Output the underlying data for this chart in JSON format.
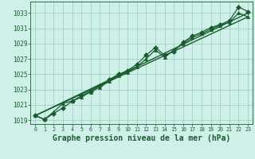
{
  "title": "",
  "xlabel": "Graphe pression niveau de la mer (hPa)",
  "xlabel_fontsize": 7,
  "ylabel": "",
  "background_color": "#cff0e8",
  "plot_bg_color": "#cff0e8",
  "grid_color": "#99ccbb",
  "line_color": "#1a5c30",
  "marker_color": "#1a5c30",
  "ylim": [
    1018.5,
    1034.5
  ],
  "xlim": [
    -0.5,
    23.5
  ],
  "yticks": [
    1019,
    1021,
    1023,
    1025,
    1027,
    1029,
    1031,
    1033
  ],
  "xticks": [
    0,
    1,
    2,
    3,
    4,
    5,
    6,
    7,
    8,
    9,
    10,
    11,
    12,
    13,
    14,
    15,
    16,
    17,
    18,
    19,
    20,
    21,
    22,
    23
  ],
  "xtick_labels": [
    "0",
    "1",
    "2",
    "3",
    "4",
    "5",
    "6",
    "7",
    "8",
    "9",
    "10",
    "11",
    "12",
    "13",
    "14",
    "15",
    "16",
    "17",
    "18",
    "19",
    "20",
    "21",
    "22",
    "23"
  ],
  "series_main": {
    "x": [
      0,
      1,
      2,
      3,
      4,
      5,
      6,
      7,
      8,
      9,
      10,
      11,
      12,
      13,
      14,
      15,
      16,
      17,
      18,
      19,
      20,
      21,
      22,
      23
    ],
    "y": [
      1019.6,
      1019.1,
      1019.9,
      1020.6,
      1021.5,
      1022.2,
      1022.8,
      1023.5,
      1024.3,
      1025.0,
      1025.5,
      1026.3,
      1027.5,
      1028.5,
      1027.5,
      1028.0,
      1029.2,
      1030.0,
      1030.5,
      1031.1,
      1031.5,
      1032.0,
      1033.8,
      1033.2
    ],
    "marker": "D",
    "marker_size": 3,
    "linewidth": 0.9
  },
  "series_alt": {
    "x": [
      0,
      1,
      2,
      3,
      4,
      5,
      6,
      7,
      8,
      9,
      10,
      11,
      12,
      13,
      14,
      15,
      16,
      17,
      18,
      19,
      20,
      21,
      22,
      23
    ],
    "y": [
      1019.6,
      1019.1,
      1020.1,
      1021.2,
      1021.5,
      1022.0,
      1022.7,
      1023.3,
      1024.1,
      1024.8,
      1025.3,
      1026.0,
      1027.0,
      1028.2,
      1027.2,
      1028.2,
      1029.0,
      1029.8,
      1030.3,
      1030.9,
      1031.4,
      1031.8,
      1033.0,
      1032.5
    ],
    "marker": "^",
    "marker_size": 3,
    "linewidth": 0.9
  },
  "trend1": {
    "x": [
      0,
      23
    ],
    "y": [
      1019.6,
      1033.0
    ]
  },
  "trend2": {
    "x": [
      0,
      23
    ],
    "y": [
      1019.6,
      1032.5
    ]
  }
}
